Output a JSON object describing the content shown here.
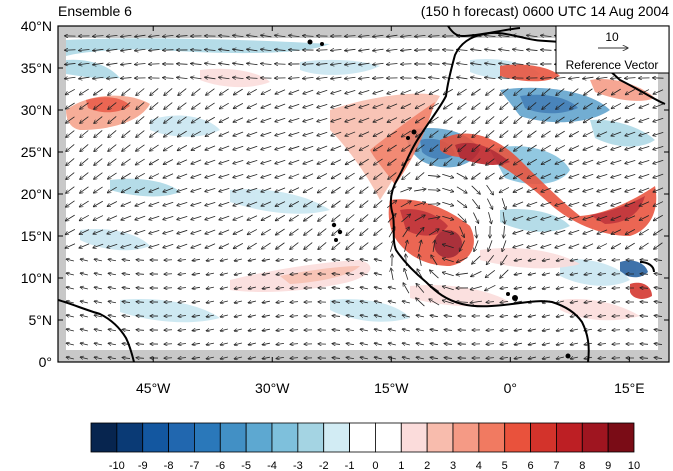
{
  "header": {
    "left_title": "Ensemble 6",
    "right_title": "(150 h forecast) 0600 UTC 14 Aug 2004"
  },
  "reference_vector": {
    "magnitude_label": "10",
    "caption": "Reference Vector"
  },
  "axes": {
    "y_ticks": [
      "40°N",
      "35°N",
      "30°N",
      "25°N",
      "20°N",
      "15°N",
      "10°N",
      "5°N",
      "0°"
    ],
    "x_ticks": [
      "45°W",
      "30°W",
      "15°W",
      "0°",
      "15°E"
    ]
  },
  "colorbar": {
    "labels": [
      "-10",
      "-9",
      "-8",
      "-7",
      "-6",
      "-5",
      "-4",
      "-3",
      "-2",
      "-1",
      "0",
      "1",
      "2",
      "3",
      "4",
      "5",
      "6",
      "7",
      "8",
      "9",
      "10"
    ],
    "colors": [
      "#07254f",
      "#0a3a75",
      "#1357a0",
      "#2167af",
      "#2a78ba",
      "#4290c5",
      "#5da8d1",
      "#7ec0dc",
      "#a4d4e3",
      "#d2ecf4",
      "#ffffff",
      "#ffffff",
      "#fbdcdb",
      "#f8bcad",
      "#f59a85",
      "#f17a61",
      "#e9523c",
      "#d3332b",
      "#bd1f24",
      "#9f1520",
      "#7a0c16"
    ]
  },
  "map": {
    "lon_range": [
      -57,
      20
    ],
    "lat_range": [
      0,
      40
    ],
    "grid": false
  }
}
